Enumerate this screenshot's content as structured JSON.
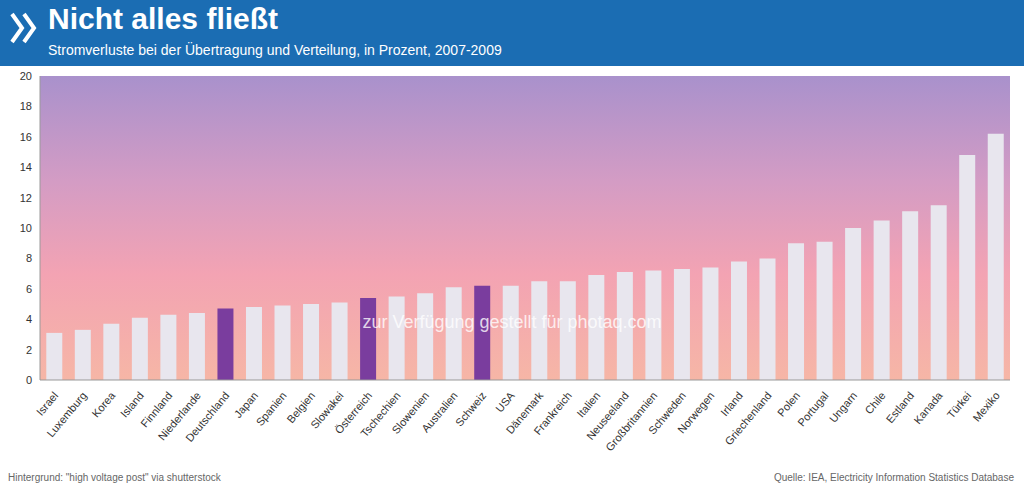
{
  "chart_data": {
    "type": "bar",
    "title": "Nicht alles fließt",
    "subtitle": "Stromverluste bei der Übertragung und Verteilung, in Prozent, 2007-2009",
    "annotations": [
      "Hintergrund: \"high voltage post\" via shutterstock",
      "zur Verfügung gestellt für photaq.com",
      "Quelle: IEA, Electricity Information Statistics Database"
    ],
    "categories": [
      "Israel",
      "Luxemburg",
      "Korea",
      "Island",
      "Finnland",
      "Niederlande",
      "Deutschland",
      "Japan",
      "Spanien",
      "Belgien",
      "Slowakei",
      "Österreich",
      "Tschechien",
      "Slowenien",
      "Australien",
      "Schweiz",
      "USA",
      "Dänemark",
      "Frankreich",
      "Italien",
      "Neuseeland",
      "Großbritannien",
      "Schweden",
      "Norwegen",
      "Irland",
      "Griechenland",
      "Polen",
      "Portugal",
      "Ungarn",
      "Chile",
      "Estland",
      "Kanada",
      "Türkei",
      "Mexiko"
    ],
    "values": [
      3.1,
      3.3,
      3.7,
      4.1,
      4.3,
      4.4,
      4.7,
      4.8,
      4.9,
      5.0,
      5.1,
      5.4,
      5.5,
      5.7,
      6.1,
      6.2,
      6.2,
      6.5,
      6.5,
      6.9,
      7.1,
      7.2,
      7.3,
      7.4,
      7.8,
      8.0,
      9.0,
      9.1,
      10.0,
      10.5,
      11.1,
      11.5,
      14.8,
      16.2
    ],
    "colors": [
      "#e8e6ee",
      "#e8e6ee",
      "#e8e6ee",
      "#e8e6ee",
      "#e8e6ee",
      "#e8e6ee",
      "#7a3d9e",
      "#e8e6ee",
      "#e8e6ee",
      "#e8e6ee",
      "#e8e6ee",
      "#7a3d9e",
      "#e8e6ee",
      "#e8e6ee",
      "#e8e6ee",
      "#7a3d9e",
      "#e8e6ee",
      "#e8e6ee",
      "#e8e6ee",
      "#e8e6ee",
      "#e8e6ee",
      "#e8e6ee",
      "#e8e6ee",
      "#e8e6ee",
      "#e8e6ee",
      "#e8e6ee",
      "#e8e6ee",
      "#e8e6ee",
      "#e8e6ee",
      "#e8e6ee",
      "#e8e6ee",
      "#e8e6ee",
      "#e8e6ee",
      "#e8e6ee"
    ],
    "ylim": [
      0,
      20
    ],
    "yticks": [
      0,
      2,
      4,
      6,
      8,
      10,
      12,
      14,
      16,
      18,
      20
    ],
    "grid": false
  }
}
